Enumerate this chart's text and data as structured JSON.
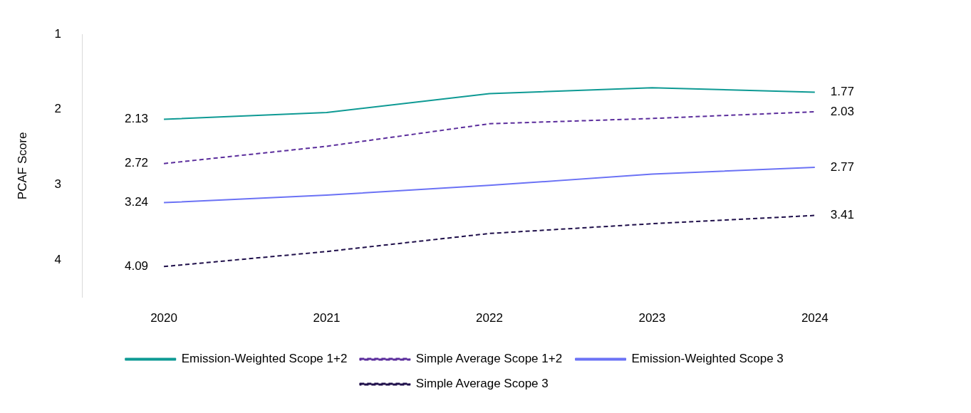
{
  "chart_data": {
    "type": "line",
    "ylabel": "PCAF Score",
    "categories": [
      "2020",
      "2021",
      "2022",
      "2023",
      "2024"
    ],
    "ylim": [
      4.5,
      1
    ],
    "yticks": [
      1,
      2,
      3,
      4
    ],
    "grid": false,
    "legend": "bottom",
    "marker": "none",
    "series": [
      {
        "name": "Emission-Weighted Scope 1+2",
        "color": "#0e9a94",
        "line_style": "solid",
        "values": [
          2.13,
          2.04,
          1.79,
          1.71,
          1.77
        ],
        "value_labels": [
          "2.13",
          null,
          null,
          null,
          "1.77"
        ]
      },
      {
        "name": "Simple Average Scope 1+2",
        "color": "#5b2d9c",
        "line_style": "dashed",
        "values": [
          2.72,
          2.49,
          2.19,
          2.12,
          2.03
        ],
        "value_labels": [
          "2.72",
          null,
          null,
          null,
          "2.03"
        ]
      },
      {
        "name": "Emission-Weighted Scope 3",
        "color": "#6b72f5",
        "line_style": "solid",
        "values": [
          3.24,
          3.14,
          3.01,
          2.86,
          2.77
        ],
        "value_labels": [
          "3.24",
          null,
          null,
          null,
          "2.77"
        ]
      },
      {
        "name": "Simple Average Scope 3",
        "color": "#1f0f4a",
        "line_style": "dashed",
        "values": [
          4.09,
          3.89,
          3.65,
          3.52,
          3.41
        ],
        "value_labels": [
          "4.09",
          null,
          null,
          null,
          "3.41"
        ]
      }
    ]
  }
}
